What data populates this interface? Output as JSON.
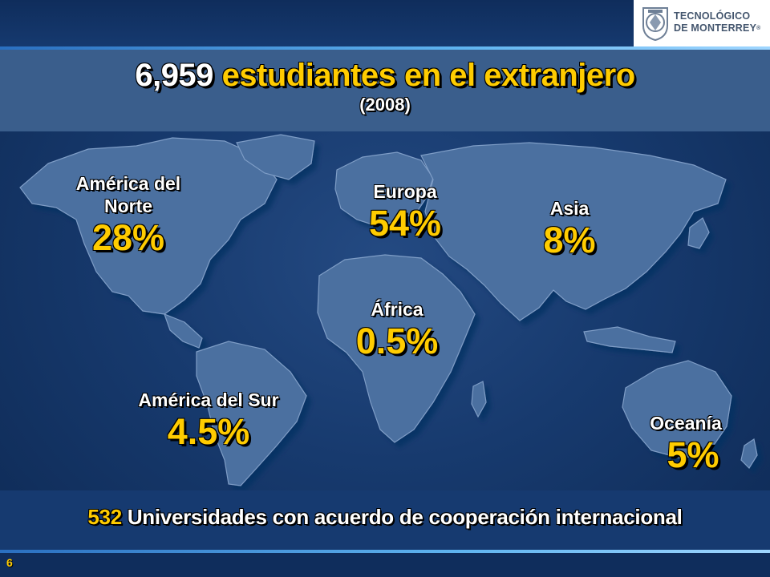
{
  "header": {
    "logo_line1": "TECNOLÓGICO",
    "logo_line2": "DE MONTERREY",
    "logo_mark": "®"
  },
  "title": {
    "number": "6,959",
    "text": "estudiantes en el extranjero",
    "year": "(2008)"
  },
  "regions": [
    {
      "name_line1": "América del",
      "name_line2": "Norte",
      "percent": "28%"
    },
    {
      "name_line1": "Europa",
      "percent": "54%"
    },
    {
      "name_line1": "Asia",
      "percent": "8%"
    },
    {
      "name_line1": "África",
      "percent": "0.5%"
    },
    {
      "name_line1": "América del Sur",
      "percent": "4.5%"
    },
    {
      "name_line1": "Oceanía",
      "percent": "5%"
    }
  ],
  "footer": {
    "number": "532",
    "text": "Universidades con acuerdo de cooperación internacional"
  },
  "slide_number": "6",
  "colors": {
    "background": "#173a6e",
    "title_bar": "#3a5e8c",
    "highlight": "#ffcc00",
    "land": "#4b6fa0"
  }
}
